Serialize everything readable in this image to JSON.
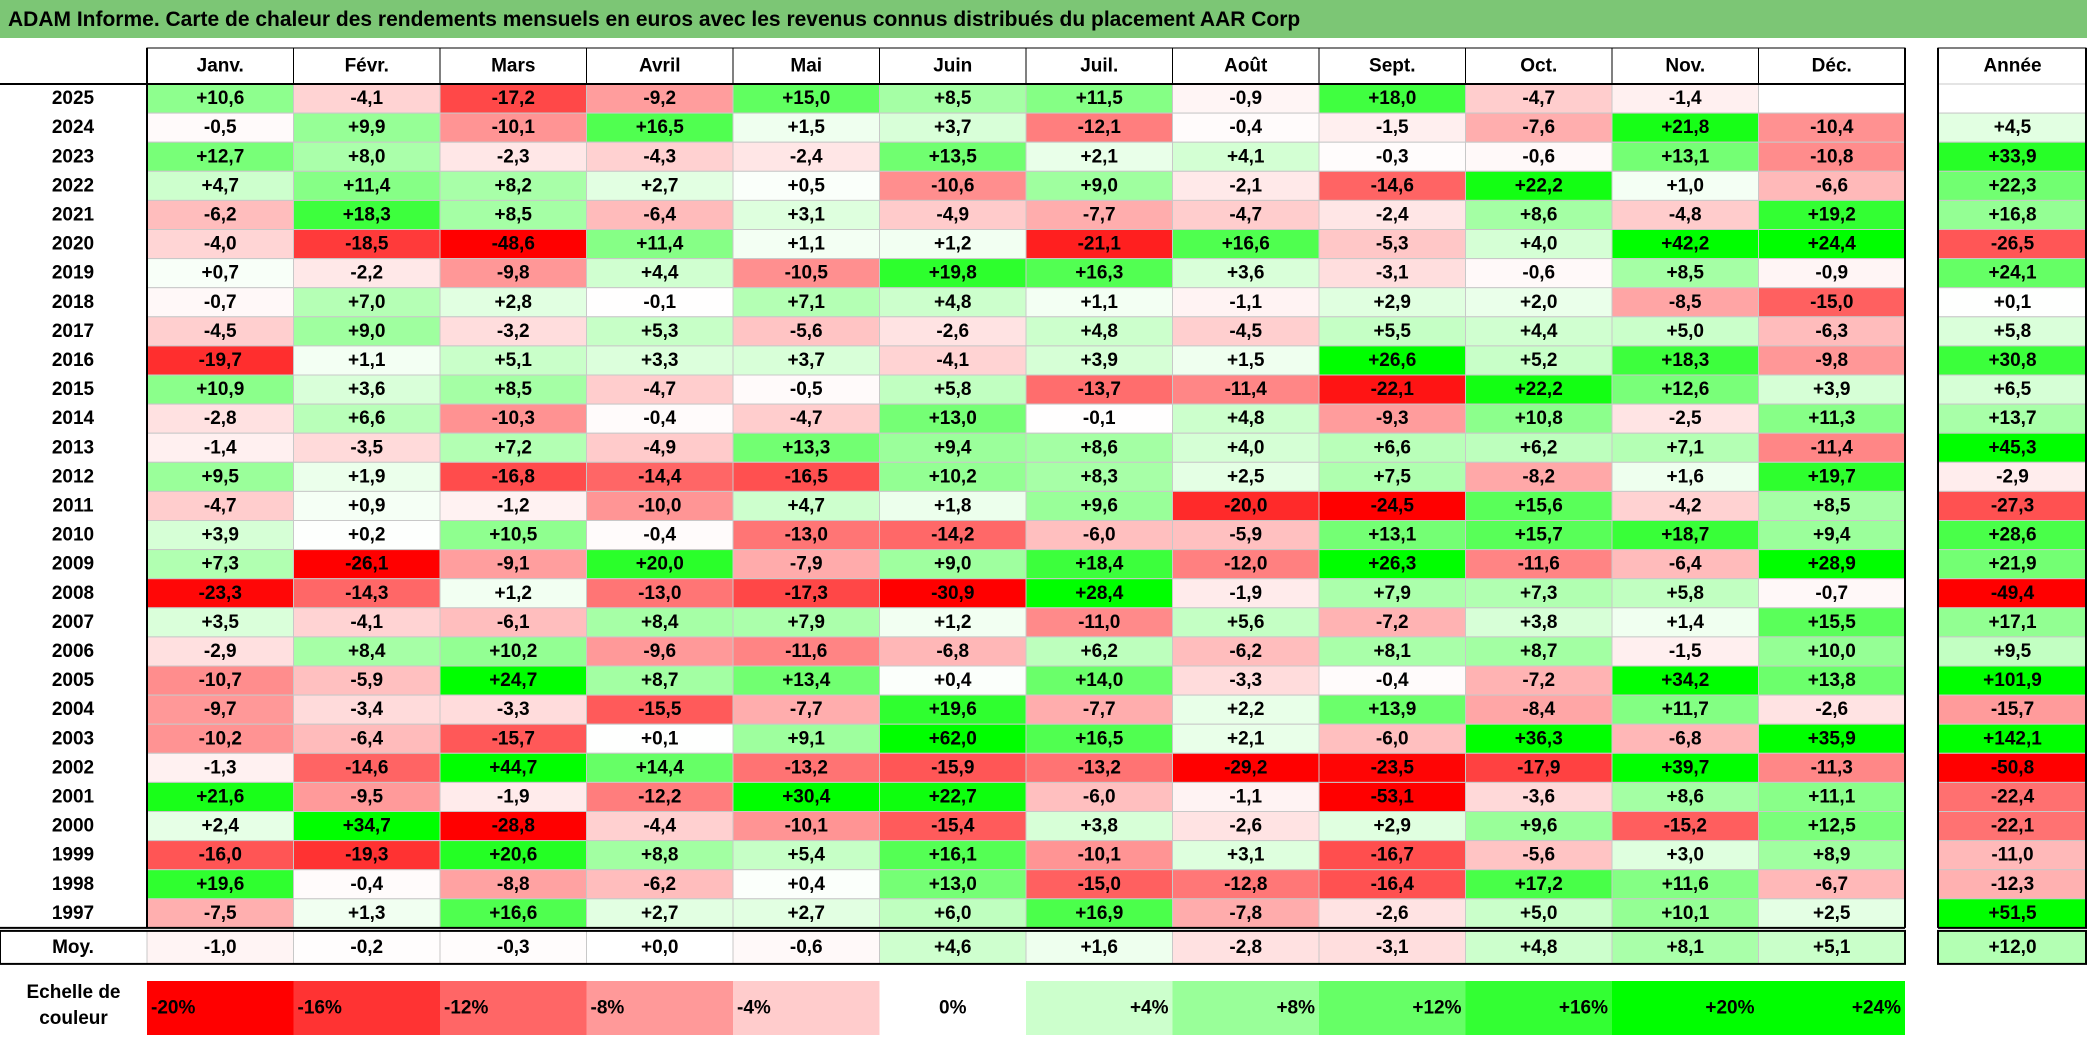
{
  "chart_data": {
    "type": "heatmap",
    "title": "ADAM Informe. Carte de chaleur des rendements mensuels en euros avec les revenus connus distribués du placement AAR Corp",
    "columns": [
      "Janv.",
      "Févr.",
      "Mars",
      "Avril",
      "Mai",
      "Juin",
      "Juil.",
      "Août",
      "Sept.",
      "Oct.",
      "Nov.",
      "Déc."
    ],
    "year_column_label": "Année",
    "avg_label": "Moy.",
    "rows": [
      {
        "year": "2025",
        "values": [
          "+10,6",
          "-4,1",
          "-17,2",
          "-9,2",
          "+15,0",
          "+8,5",
          "+11,5",
          "-0,9",
          "+18,0",
          "-4,7",
          "-1,4",
          ""
        ],
        "annual": ""
      },
      {
        "year": "2024",
        "values": [
          "-0,5",
          "+9,9",
          "-10,1",
          "+16,5",
          "+1,5",
          "+3,7",
          "-12,1",
          "-0,4",
          "-1,5",
          "-7,6",
          "+21,8",
          "-10,4"
        ],
        "annual": "+4,5"
      },
      {
        "year": "2023",
        "values": [
          "+12,7",
          "+8,0",
          "-2,3",
          "-4,3",
          "-2,4",
          "+13,5",
          "+2,1",
          "+4,1",
          "-0,3",
          "-0,6",
          "+13,1",
          "-10,8"
        ],
        "annual": "+33,9"
      },
      {
        "year": "2022",
        "values": [
          "+4,7",
          "+11,4",
          "+8,2",
          "+2,7",
          "+0,5",
          "-10,6",
          "+9,0",
          "-2,1",
          "-14,6",
          "+22,2",
          "+1,0",
          "-6,6"
        ],
        "annual": "+22,3"
      },
      {
        "year": "2021",
        "values": [
          "-6,2",
          "+18,3",
          "+8,5",
          "-6,4",
          "+3,1",
          "-4,9",
          "-7,7",
          "-4,7",
          "-2,4",
          "+8,6",
          "-4,8",
          "+19,2"
        ],
        "annual": "+16,8"
      },
      {
        "year": "2020",
        "values": [
          "-4,0",
          "-18,5",
          "-48,6",
          "+11,4",
          "+1,1",
          "+1,2",
          "-21,1",
          "+16,6",
          "-5,3",
          "+4,0",
          "+42,2",
          "+24,4"
        ],
        "annual": "-26,5"
      },
      {
        "year": "2019",
        "values": [
          "+0,7",
          "-2,2",
          "-9,8",
          "+4,4",
          "-10,5",
          "+19,8",
          "+16,3",
          "+3,6",
          "-3,1",
          "-0,6",
          "+8,5",
          "-0,9"
        ],
        "annual": "+24,1"
      },
      {
        "year": "2018",
        "values": [
          "-0,7",
          "+7,0",
          "+2,8",
          "-0,1",
          "+7,1",
          "+4,8",
          "+1,1",
          "-1,1",
          "+2,9",
          "+2,0",
          "-8,5",
          "-15,0"
        ],
        "annual": "+0,1"
      },
      {
        "year": "2017",
        "values": [
          "-4,5",
          "+9,0",
          "-3,2",
          "+5,3",
          "-5,6",
          "-2,6",
          "+4,8",
          "-4,5",
          "+5,5",
          "+4,4",
          "+5,0",
          "-6,3"
        ],
        "annual": "+5,8"
      },
      {
        "year": "2016",
        "values": [
          "-19,7",
          "+1,1",
          "+5,1",
          "+3,3",
          "+3,7",
          "-4,1",
          "+3,9",
          "+1,5",
          "+26,6",
          "+5,2",
          "+18,3",
          "-9,8"
        ],
        "annual": "+30,8"
      },
      {
        "year": "2015",
        "values": [
          "+10,9",
          "+3,6",
          "+8,5",
          "-4,7",
          "-0,5",
          "+5,8",
          "-13,7",
          "-11,4",
          "-22,1",
          "+22,2",
          "+12,6",
          "+3,9"
        ],
        "annual": "+6,5"
      },
      {
        "year": "2014",
        "values": [
          "-2,8",
          "+6,6",
          "-10,3",
          "-0,4",
          "-4,7",
          "+13,0",
          "-0,1",
          "+4,8",
          "-9,3",
          "+10,8",
          "-2,5",
          "+11,3"
        ],
        "annual": "+13,7"
      },
      {
        "year": "2013",
        "values": [
          "-1,4",
          "-3,5",
          "+7,2",
          "-4,9",
          "+13,3",
          "+9,4",
          "+8,6",
          "+4,0",
          "+6,6",
          "+6,2",
          "+7,1",
          "-11,4"
        ],
        "annual": "+45,3"
      },
      {
        "year": "2012",
        "values": [
          "+9,5",
          "+1,9",
          "-16,8",
          "-14,4",
          "-16,5",
          "+10,2",
          "+8,3",
          "+2,5",
          "+7,5",
          "-8,2",
          "+1,6",
          "+19,7"
        ],
        "annual": "-2,9"
      },
      {
        "year": "2011",
        "values": [
          "-4,7",
          "+0,9",
          "-1,2",
          "-10,0",
          "+4,7",
          "+1,8",
          "+9,6",
          "-20,0",
          "-24,5",
          "+15,6",
          "-4,2",
          "+8,5"
        ],
        "annual": "-27,3"
      },
      {
        "year": "2010",
        "values": [
          "+3,9",
          "+0,2",
          "+10,5",
          "-0,4",
          "-13,0",
          "-14,2",
          "-6,0",
          "-5,9",
          "+13,1",
          "+15,7",
          "+18,7",
          "+9,4"
        ],
        "annual": "+28,6"
      },
      {
        "year": "2009",
        "values": [
          "+7,3",
          "-26,1",
          "-9,1",
          "+20,0",
          "-7,9",
          "+9,0",
          "+18,4",
          "-12,0",
          "+26,3",
          "-11,6",
          "-6,4",
          "+28,9"
        ],
        "annual": "+21,9"
      },
      {
        "year": "2008",
        "values": [
          "-23,3",
          "-14,3",
          "+1,2",
          "-13,0",
          "-17,3",
          "-30,9",
          "+28,4",
          "-1,9",
          "+7,9",
          "+7,3",
          "+5,8",
          "-0,7"
        ],
        "annual": "-49,4"
      },
      {
        "year": "2007",
        "values": [
          "+3,5",
          "-4,1",
          "-6,1",
          "+8,4",
          "+7,9",
          "+1,2",
          "-11,0",
          "+5,6",
          "-7,2",
          "+3,8",
          "+1,4",
          "+15,5"
        ],
        "annual": "+17,1"
      },
      {
        "year": "2006",
        "values": [
          "-2,9",
          "+8,4",
          "+10,2",
          "-9,6",
          "-11,6",
          "-6,8",
          "+6,2",
          "-6,2",
          "+8,1",
          "+8,7",
          "-1,5",
          "+10,0"
        ],
        "annual": "+9,5"
      },
      {
        "year": "2005",
        "values": [
          "-10,7",
          "-5,9",
          "+24,7",
          "+8,7",
          "+13,4",
          "+0,4",
          "+14,0",
          "-3,3",
          "-0,4",
          "-7,2",
          "+34,2",
          "+13,8"
        ],
        "annual": "+101,9"
      },
      {
        "year": "2004",
        "values": [
          "-9,7",
          "-3,4",
          "-3,3",
          "-15,5",
          "-7,7",
          "+19,6",
          "-7,7",
          "+2,2",
          "+13,9",
          "-8,4",
          "+11,7",
          "-2,6"
        ],
        "annual": "-15,7"
      },
      {
        "year": "2003",
        "values": [
          "-10,2",
          "-6,4",
          "-15,7",
          "+0,1",
          "+9,1",
          "+62,0",
          "+16,5",
          "+2,1",
          "-6,0",
          "+36,3",
          "-6,8",
          "+35,9"
        ],
        "annual": "+142,1"
      },
      {
        "year": "2002",
        "values": [
          "-1,3",
          "-14,6",
          "+44,7",
          "+14,4",
          "-13,2",
          "-15,9",
          "-13,2",
          "-29,2",
          "-23,5",
          "-17,9",
          "+39,7",
          "-11,3"
        ],
        "annual": "-50,8"
      },
      {
        "year": "2001",
        "values": [
          "+21,6",
          "-9,5",
          "-1,9",
          "-12,2",
          "+30,4",
          "+22,7",
          "-6,0",
          "-1,1",
          "-53,1",
          "-3,6",
          "+8,6",
          "+11,1"
        ],
        "annual": "-22,4"
      },
      {
        "year": "2000",
        "values": [
          "+2,4",
          "+34,7",
          "-28,8",
          "-4,4",
          "-10,1",
          "-15,4",
          "+3,8",
          "-2,6",
          "+2,9",
          "+9,6",
          "-15,2",
          "+12,5"
        ],
        "annual": "-22,1"
      },
      {
        "year": "1999",
        "values": [
          "-16,0",
          "-19,3",
          "+20,6",
          "+8,8",
          "+5,4",
          "+16,1",
          "-10,1",
          "+3,1",
          "-16,7",
          "-5,6",
          "+3,0",
          "+8,9"
        ],
        "annual": "-11,0"
      },
      {
        "year": "1998",
        "values": [
          "+19,6",
          "-0,4",
          "-8,8",
          "-6,2",
          "+0,4",
          "+13,0",
          "-15,0",
          "-12,8",
          "-16,4",
          "+17,2",
          "+11,6",
          "-6,7"
        ],
        "annual": "-12,3"
      },
      {
        "year": "1997",
        "values": [
          "-7,5",
          "+1,3",
          "+16,6",
          "+2,7",
          "+2,7",
          "+6,0",
          "+16,9",
          "-7,8",
          "-2,6",
          "+5,0",
          "+10,1",
          "+2,5"
        ],
        "annual": "+51,5"
      }
    ],
    "averages": [
      "-1,0",
      "-0,2",
      "-0,3",
      "+0,0",
      "-0,6",
      "+4,6",
      "+1,6",
      "-2,8",
      "-3,1",
      "+4,8",
      "+8,1",
      "+5,1"
    ],
    "average_annual": "+12,0",
    "legend_title": "Echelle de couleur",
    "legend": [
      {
        "label": "-20%",
        "value": -20,
        "align": "left"
      },
      {
        "label": "-16%",
        "value": -16,
        "align": "left"
      },
      {
        "label": "-12%",
        "value": -12,
        "align": "left"
      },
      {
        "label": "-8%",
        "value": -8,
        "align": "left"
      },
      {
        "label": "-4%",
        "value": -4,
        "align": "left"
      },
      {
        "label": "0%",
        "value": 0,
        "align": "center"
      },
      {
        "label": "+4%",
        "value": 4,
        "align": "right"
      },
      {
        "label": "+8%",
        "value": 8,
        "align": "right"
      },
      {
        "label": "+12%",
        "value": 12,
        "align": "right"
      },
      {
        "label": "+16%",
        "value": 16,
        "align": "right"
      },
      {
        "label": "+20%",
        "value": 20,
        "align": "right"
      },
      {
        "label": "+24%",
        "value": 24,
        "align": "right"
      }
    ],
    "colors": {
      "negative": "#ff0000",
      "positive": "#00ff00",
      "neutral": "#ffffff",
      "title_bg": "#7cc675"
    }
  }
}
